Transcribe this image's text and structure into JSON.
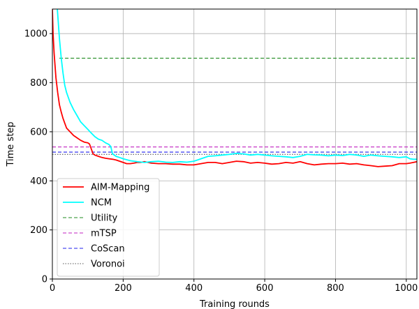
{
  "chart_data": {
    "type": "line",
    "title": "",
    "xlabel": "Training rounds",
    "ylabel": "Time step",
    "xlim": [
      0,
      1030
    ],
    "ylim": [
      0,
      1100
    ],
    "xticks": [
      0,
      200,
      400,
      600,
      800,
      1000
    ],
    "yticks": [
      0,
      200,
      400,
      600,
      800,
      1000
    ],
    "grid": true,
    "legend_position": "bottom-left",
    "series": [
      {
        "name": "AIM-Mapping",
        "color": "#ff0000",
        "style": "solid",
        "x": [
          0,
          2,
          5,
          10,
          15,
          20,
          25,
          30,
          35,
          40,
          50,
          60,
          70,
          80,
          90,
          100,
          105,
          110,
          115,
          120,
          130,
          140,
          150,
          160,
          170,
          180,
          190,
          200,
          210,
          220,
          230,
          240,
          250,
          260,
          280,
          300,
          320,
          340,
          360,
          380,
          400,
          420,
          440,
          460,
          480,
          500,
          520,
          540,
          560,
          580,
          600,
          620,
          640,
          660,
          680,
          700,
          720,
          740,
          760,
          780,
          800,
          820,
          840,
          860,
          880,
          900,
          920,
          940,
          960,
          980,
          1000,
          1010,
          1020,
          1030
        ],
        "values": [
          1100,
          1000,
          920,
          820,
          760,
          710,
          680,
          655,
          635,
          615,
          600,
          585,
          575,
          565,
          558,
          555,
          550,
          530,
          510,
          505,
          500,
          495,
          492,
          490,
          488,
          485,
          480,
          475,
          470,
          470,
          472,
          475,
          475,
          478,
          472,
          470,
          470,
          468,
          468,
          465,
          465,
          470,
          475,
          475,
          470,
          475,
          480,
          478,
          472,
          475,
          472,
          468,
          470,
          475,
          472,
          478,
          470,
          465,
          468,
          470,
          470,
          472,
          468,
          470,
          465,
          462,
          458,
          460,
          462,
          470,
          470,
          472,
          475,
          478
        ]
      },
      {
        "name": "NCM",
        "color": "#00ffff",
        "style": "solid",
        "x": [
          14,
          20,
          25,
          30,
          35,
          40,
          50,
          60,
          70,
          80,
          90,
          100,
          110,
          120,
          130,
          140,
          150,
          160,
          165,
          170,
          180,
          190,
          200,
          220,
          240,
          260,
          280,
          300,
          320,
          340,
          360,
          380,
          400,
          420,
          440,
          460,
          480,
          500,
          520,
          540,
          560,
          580,
          600,
          620,
          640,
          660,
          680,
          700,
          720,
          740,
          760,
          780,
          800,
          820,
          840,
          860,
          880,
          900,
          920,
          940,
          960,
          980,
          1000,
          1010,
          1020,
          1030
        ],
        "values": [
          1100,
          980,
          900,
          840,
          790,
          760,
          720,
          690,
          665,
          640,
          625,
          610,
          595,
          580,
          570,
          565,
          555,
          548,
          540,
          510,
          500,
          495,
          490,
          482,
          478,
          475,
          478,
          480,
          476,
          475,
          478,
          476,
          480,
          490,
          500,
          502,
          505,
          508,
          512,
          510,
          505,
          508,
          505,
          502,
          500,
          498,
          495,
          500,
          508,
          506,
          505,
          502,
          505,
          503,
          508,
          505,
          500,
          505,
          502,
          500,
          498,
          495,
          498,
          490,
          488,
          488
        ]
      },
      {
        "name": "Utility",
        "color": "#228b22",
        "style": "dashed",
        "x": [
          20,
          1030
        ],
        "values": [
          900,
          900
        ]
      },
      {
        "name": "mTSP",
        "color": "#c020c0",
        "style": "dashed",
        "x": [
          0,
          1030
        ],
        "values": [
          538,
          538
        ]
      },
      {
        "name": "CoScan",
        "color": "#2222ee",
        "style": "dashed",
        "x": [
          0,
          1030
        ],
        "values": [
          517,
          517
        ]
      },
      {
        "name": "Voronoi",
        "color": "#555555",
        "style": "dotted",
        "x": [
          0,
          1030
        ],
        "values": [
          508,
          508
        ]
      }
    ]
  }
}
